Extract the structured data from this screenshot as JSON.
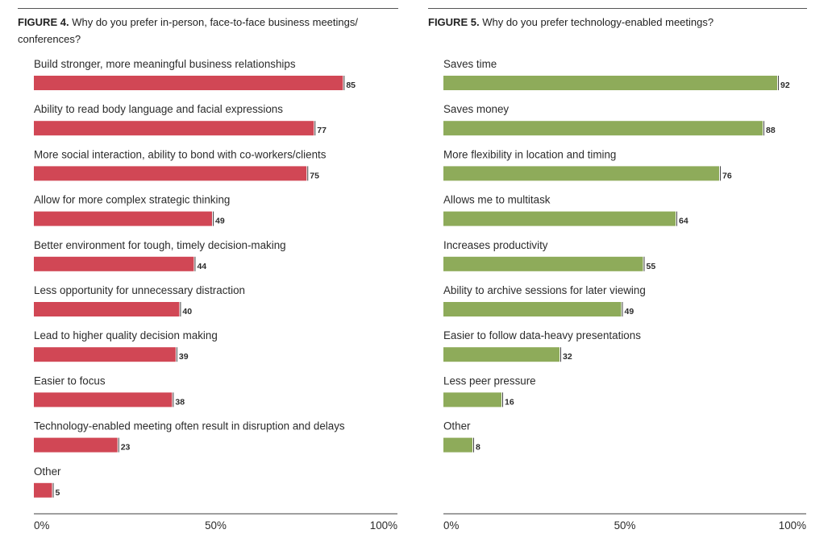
{
  "chart_data": [
    {
      "type": "bar",
      "orientation": "horizontal",
      "figure_label": "FIGURE 4.",
      "title": "Why do you prefer in-person, face-to-face business meetings/ conferences?",
      "title_lines": [
        "Why do you prefer in-person, face-to-face business meetings/",
        "conferences?"
      ],
      "categories": [
        "Build stronger, more meaningful business relationships",
        "Ability to read body language and facial expressions",
        "More social interaction, ability to bond with co-workers/clients",
        "Allow for more complex strategic thinking",
        "Better environment for tough, timely decision-making",
        "Less opportunity for unnecessary distraction",
        "Lead to higher quality decision making",
        "Easier to focus",
        "Technology-enabled meeting often result in disruption and delays",
        "Other"
      ],
      "values": [
        85,
        77,
        75,
        49,
        44,
        40,
        39,
        38,
        23,
        5
      ],
      "value_unit": "%",
      "xlim": [
        0,
        100
      ],
      "xticks": [
        "0%",
        "50%",
        "100%"
      ],
      "bar_color": "#d14755",
      "grid": false
    },
    {
      "type": "bar",
      "orientation": "horizontal",
      "figure_label": "FIGURE 5.",
      "title": "Why do you prefer technology-enabled meetings?",
      "title_lines": [
        "Why do you prefer technology-enabled meetings?"
      ],
      "categories": [
        "Saves time",
        "Saves money",
        "More flexibility in location and timing",
        "Allows me to multitask",
        "Increases productivity",
        "Ability to archive sessions for later viewing",
        "Easier to follow data-heavy presentations",
        "Less peer pressure",
        "Other"
      ],
      "values": [
        92,
        88,
        76,
        64,
        55,
        49,
        32,
        16,
        8
      ],
      "value_unit": "%",
      "xlim": [
        0,
        100
      ],
      "xticks": [
        "0%",
        "50%",
        "100%"
      ],
      "bar_color": "#8eab5a",
      "grid": false
    }
  ]
}
